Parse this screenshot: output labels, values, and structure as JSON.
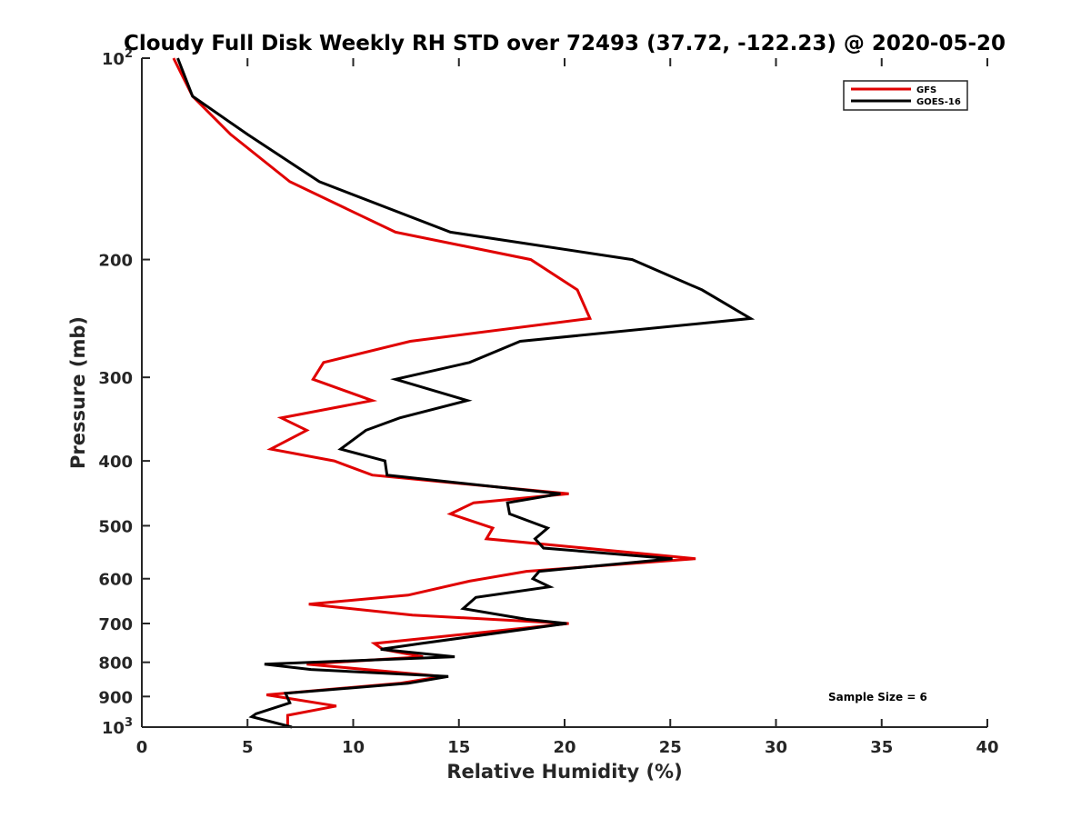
{
  "chart_data": {
    "type": "line",
    "title": "Cloudy Full Disk Weekly RH STD over 72493 (37.72, -122.23) @ 2020-05-20",
    "xlabel": "Relative Humidity (%)",
    "ylabel": "Pressure (mb)",
    "xlim": [
      0,
      40
    ],
    "ylim": [
      100,
      1000
    ],
    "y_scale": "log",
    "y_reversed": true,
    "x_ticks": [
      0,
      5,
      10,
      15,
      20,
      25,
      30,
      35,
      40
    ],
    "y_ticks": [
      {
        "value": 100,
        "base": "10",
        "exp": "2"
      },
      {
        "value": 200,
        "label": "200"
      },
      {
        "value": 300,
        "label": "300"
      },
      {
        "value": 400,
        "label": "400"
      },
      {
        "value": 500,
        "label": "500"
      },
      {
        "value": 600,
        "label": "600"
      },
      {
        "value": 700,
        "label": "700"
      },
      {
        "value": 800,
        "label": "800"
      },
      {
        "value": 900,
        "label": "900"
      },
      {
        "value": 1000,
        "base": "10",
        "exp": "3"
      }
    ],
    "grid": false,
    "legend_position": "top-right",
    "annotation": "Sample Size = 6",
    "series": [
      {
        "name": "GFS",
        "color": "#e00000",
        "points": [
          [
            1.5,
            100
          ],
          [
            2.4,
            114
          ],
          [
            4.2,
            130
          ],
          [
            7.0,
            153
          ],
          [
            12.0,
            182
          ],
          [
            18.4,
            200
          ],
          [
            20.6,
            222
          ],
          [
            21.2,
            245
          ],
          [
            12.7,
            265
          ],
          [
            8.6,
            285
          ],
          [
            8.1,
            302
          ],
          [
            10.9,
            325
          ],
          [
            6.6,
            345
          ],
          [
            7.8,
            360
          ],
          [
            6.1,
            384
          ],
          [
            9.1,
            400
          ],
          [
            10.9,
            420
          ],
          [
            20.2,
            448
          ],
          [
            15.7,
            462
          ],
          [
            14.6,
            480
          ],
          [
            16.6,
            504
          ],
          [
            16.3,
            523
          ],
          [
            26.2,
            560
          ],
          [
            18.2,
            585
          ],
          [
            15.5,
            605
          ],
          [
            12.6,
            635
          ],
          [
            7.9,
            655
          ],
          [
            12.8,
            680
          ],
          [
            20.2,
            700
          ],
          [
            11.0,
            750
          ],
          [
            11.4,
            765
          ],
          [
            13.3,
            785
          ],
          [
            7.8,
            805
          ],
          [
            14.2,
            840
          ],
          [
            12.2,
            860
          ],
          [
            5.9,
            895
          ],
          [
            9.2,
            930
          ],
          [
            6.9,
            960
          ],
          [
            6.9,
            1000
          ]
        ]
      },
      {
        "name": "GOES-16",
        "color": "#000000",
        "points": [
          [
            1.7,
            100
          ],
          [
            2.4,
            114
          ],
          [
            5.0,
            130
          ],
          [
            8.4,
            153
          ],
          [
            14.6,
            182
          ],
          [
            23.2,
            200
          ],
          [
            26.5,
            222
          ],
          [
            28.8,
            245
          ],
          [
            17.9,
            265
          ],
          [
            15.5,
            285
          ],
          [
            12.0,
            302
          ],
          [
            15.4,
            325
          ],
          [
            12.2,
            345
          ],
          [
            10.6,
            360
          ],
          [
            9.4,
            384
          ],
          [
            11.5,
            400
          ],
          [
            11.6,
            420
          ],
          [
            19.8,
            448
          ],
          [
            17.3,
            462
          ],
          [
            17.4,
            480
          ],
          [
            19.2,
            504
          ],
          [
            18.6,
            523
          ],
          [
            19.0,
            540
          ],
          [
            25.1,
            560
          ],
          [
            18.8,
            585
          ],
          [
            18.5,
            600
          ],
          [
            19.3,
            617
          ],
          [
            15.8,
            640
          ],
          [
            15.2,
            665
          ],
          [
            18.2,
            690
          ],
          [
            20.1,
            700
          ],
          [
            13.2,
            750
          ],
          [
            11.3,
            765
          ],
          [
            14.8,
            785
          ],
          [
            5.8,
            805
          ],
          [
            8.0,
            820
          ],
          [
            14.5,
            840
          ],
          [
            12.6,
            860
          ],
          [
            6.8,
            890
          ],
          [
            7.0,
            920
          ],
          [
            5.4,
            955
          ],
          [
            5.2,
            965
          ],
          [
            7.1,
            1000
          ]
        ]
      }
    ]
  }
}
